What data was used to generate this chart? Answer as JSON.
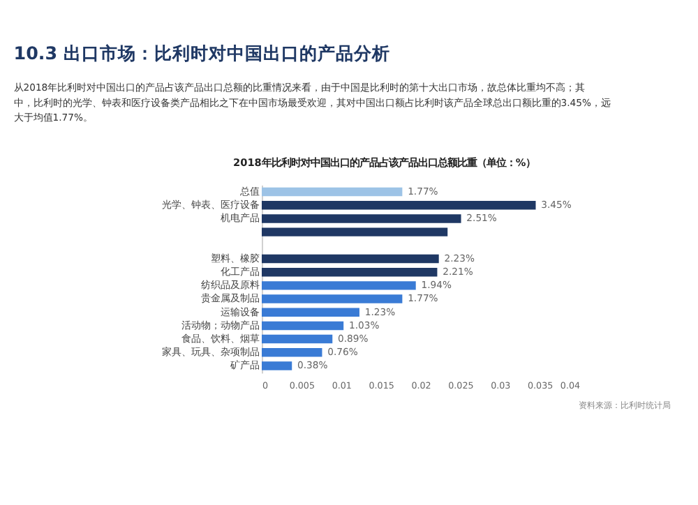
{
  "chart_data": {
    "type": "bar",
    "orientation": "horizontal",
    "title": "10.3 出口市场：比利时对中国出口的产品分析",
    "subtitle": [
      "从2018年比利时对中国出口的产品占该产品出口总额的比重情况来看，由于中国是比利时的第十大出口市场，故总体比重均不高；其",
      "中，比利时的光学、钟表和医疗设备类产品相比之下在中国市场最受欢迎，其对中国出口额占比利时该产品全球总出口额比重的3.45%，远",
      "大于均值1.77%。"
    ],
    "categories": [
      "总值",
      "光学、钟表、医疗设备",
      "机电产品",
      null,
      null,
      "塑料、橡胶",
      "化工产品",
      "纺织品及原料",
      "贵金属及制品",
      "运输设备",
      "活动物；动物产品",
      "食品、饮料、烟草",
      "家具、玩具、杂项制品",
      "矿产品"
    ],
    "values": [
      0.0177,
      0.0345,
      0.0251,
      0.0234,
      null,
      0.0223,
      0.0221,
      0.0194,
      0.0177,
      0.0123,
      0.0103,
      0.0089,
      0.0076,
      0.0038
    ],
    "value_labels": [
      "1.77%",
      "3.45%",
      "2.51%",
      null,
      null,
      "2.23%",
      "2.21%",
      "1.94%",
      "1.77%",
      "1.23%",
      "1.03%",
      "0.89%",
      "0.76%",
      "0.38%"
    ],
    "colors": [
      "#9dc3e6",
      "#1f3864",
      "#1f3864",
      "#1f3864",
      "#1f3864",
      "#1f3864",
      "#1f3864",
      "#3a7bd5",
      "#3a7bd5",
      "#3a7bd5",
      "#3a7bd5",
      "#3a7bd5",
      "#3a7bd5",
      "#3a7bd5"
    ],
    "xlim": [
      0,
      0.04
    ],
    "xticks": [
      0,
      0.005,
      0.01,
      0.015,
      0.02,
      0.025,
      0.03,
      0.035,
      0.04
    ],
    "grid": false,
    "annotations": [
      "2018年比利时对中国出口的产品占该产品出口总额比重（单位：%）",
      "资料来源：比利时统计局"
    ]
  }
}
